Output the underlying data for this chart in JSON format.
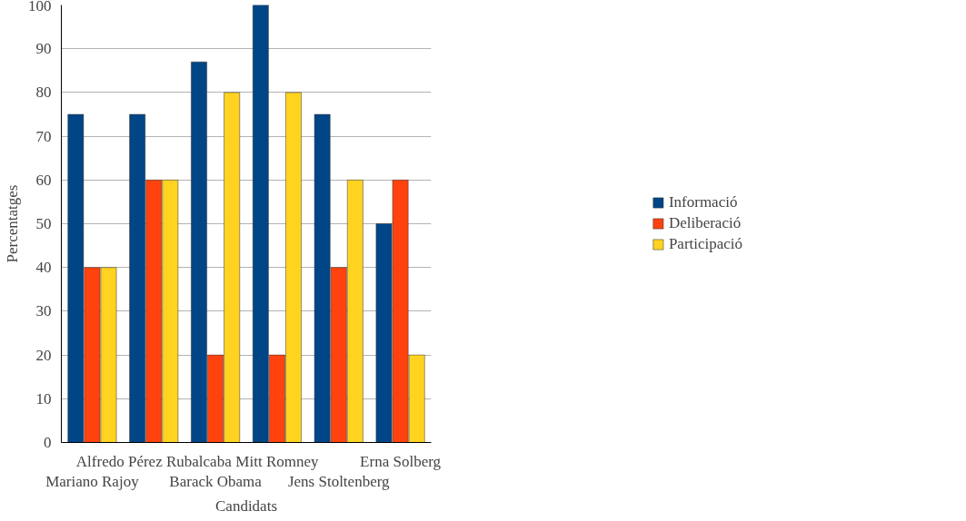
{
  "chart_data": {
    "type": "bar",
    "xlabel": "Candidats",
    "ylabel": "Percentatges",
    "categories": [
      "Mariano Rajoy",
      "Alfredo Pérez Rubalcaba",
      "Barack Obama",
      "Mitt Romney",
      "Jens Stoltenberg",
      "Erna Solberg"
    ],
    "series": [
      {
        "name": "Informació",
        "color": "#004586",
        "values": [
          75,
          75,
          87,
          100,
          75,
          50
        ]
      },
      {
        "name": "Deliberació",
        "color": "#ff420e",
        "values": [
          40,
          60,
          20,
          20,
          40,
          60
        ]
      },
      {
        "name": "Participació",
        "color": "#ffd320",
        "values": [
          40,
          60,
          80,
          80,
          60,
          20
        ]
      }
    ],
    "ylim": [
      0,
      100
    ],
    "yticks": [
      0,
      10,
      20,
      30,
      40,
      50,
      60,
      70,
      80,
      90,
      100
    ],
    "grid": "y",
    "legend": "right"
  }
}
